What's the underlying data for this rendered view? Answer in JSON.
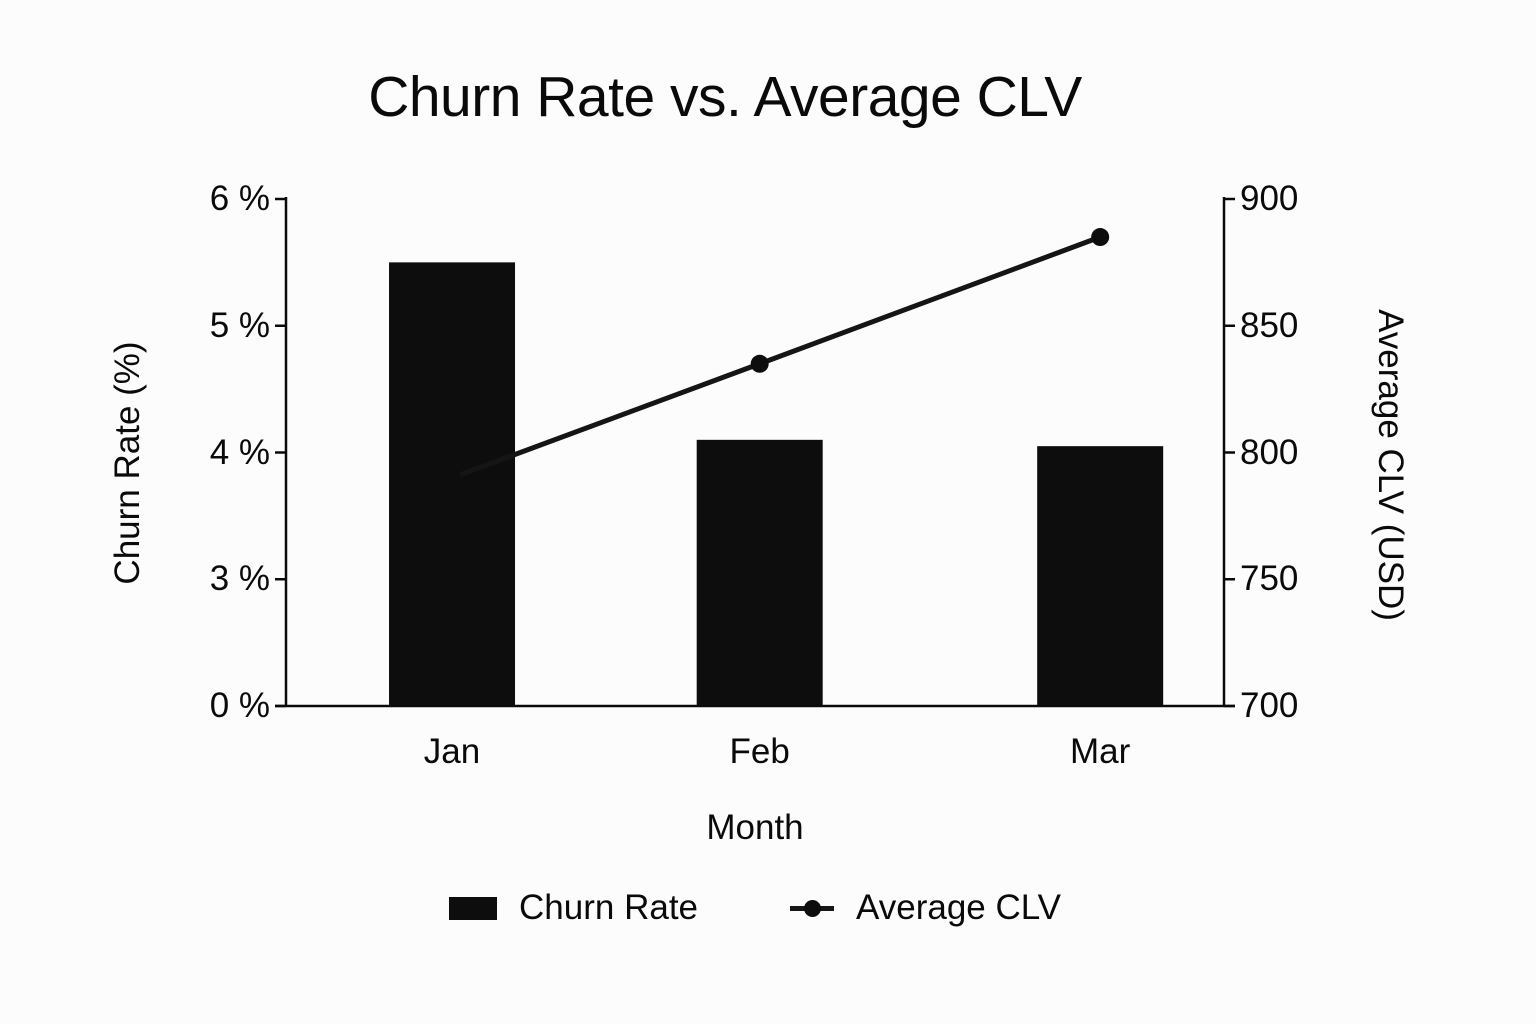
{
  "title": "Churn Rate vs. Average CLV",
  "chart_data": {
    "type": "bar+line combo",
    "categories": [
      "Jan",
      "Feb",
      "Mar"
    ],
    "series": [
      {
        "name": "Churn Rate",
        "type": "bar",
        "axis": "left",
        "unit": "%",
        "values": [
          5.5,
          4.1,
          4.05
        ]
      },
      {
        "name": "Average CLV",
        "type": "line",
        "axis": "right",
        "unit": "USD",
        "values": [
          790,
          835,
          885
        ]
      }
    ],
    "x_axis": {
      "label": "Month"
    },
    "left_axis": {
      "label": "Churn Rate (%)",
      "tick_labels": [
        "6 %",
        "5 %",
        "4 %",
        "3 %",
        "0 %"
      ],
      "tick_values": [
        6,
        5,
        4,
        3,
        0
      ]
    },
    "right_axis": {
      "label": "Average CLV (USD)",
      "tick_labels": [
        "900",
        "850",
        "800",
        "750",
        "700"
      ],
      "tick_values": [
        900,
        850,
        800,
        750,
        700
      ],
      "range": [
        700,
        900
      ]
    },
    "legend": {
      "position": "bottom",
      "items": [
        "Churn Rate",
        "Average CLV"
      ]
    },
    "grid": false,
    "colors": {
      "bar": "#0d0d0d",
      "line": "#151515",
      "marker": "#0d0d0d",
      "axis": "#0a0a0a",
      "text": "#0a0a0a",
      "background": "#fcfcfc"
    }
  }
}
